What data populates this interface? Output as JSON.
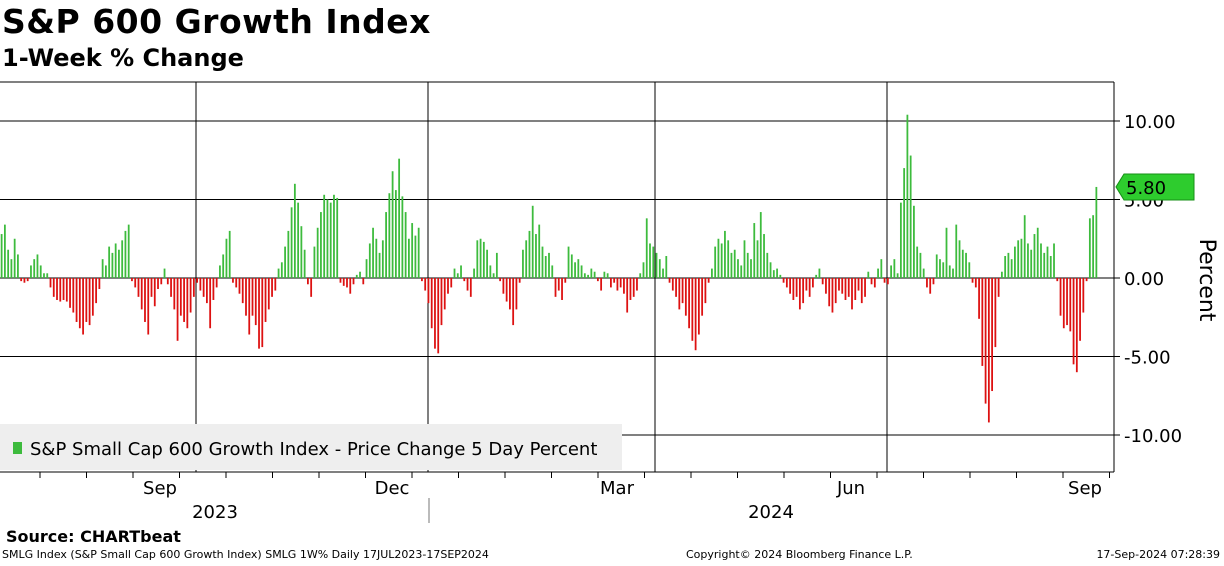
{
  "header": {
    "title": "S&P 600 Growth Index",
    "subtitle": "1-Week % Change"
  },
  "source": "Source: CHARTbeat",
  "footer": {
    "left": "SMLG Index (S&P Small Cap 600 Growth Index) SMLG 1W% Daily 17JUL2023-17SEP2024",
    "middle": "Copyright© 2024 Bloomberg Finance L.P.",
    "right": "17-Sep-2024 07:28:39"
  },
  "colors": {
    "positive": "#3dbb3d",
    "negative": "#dd1111",
    "last_label_bg": "#2ecc2e",
    "legend_bg": "#eeeeee"
  },
  "chart_data": {
    "type": "bar",
    "title": "S&P 600 Growth Index",
    "subtitle": "1-Week % Change",
    "ylabel": "Percent",
    "ylim": [
      -12.5,
      12.5
    ],
    "yticks": [
      10,
      5,
      0,
      -5,
      -10
    ],
    "ytick_labels": [
      "10.00",
      "5.00",
      "0.00",
      "-5.00",
      "-10.00"
    ],
    "x_month_labels": [
      "Sep",
      "Dec",
      "Mar",
      "Jun",
      "Sep"
    ],
    "x_year_labels": [
      "2023",
      "2024"
    ],
    "legend": "S&P Small Cap 600 Growth Index - Price Change 5 Day Percent",
    "last_value_label": "5.80",
    "series": [
      {
        "name": "S&P Small Cap 600 Growth Index - Price Change 5 Day Percent",
        "values": [
          2.8,
          3.4,
          1.8,
          1.2,
          2.5,
          1.5,
          -0.2,
          -0.3,
          -0.2,
          0.8,
          1.2,
          1.5,
          0.8,
          0.3,
          0.3,
          -0.6,
          -1.2,
          -1.4,
          -1.5,
          -1.4,
          -1.5,
          -1.9,
          -2.2,
          -2.8,
          -3.2,
          -3.6,
          -2.8,
          -3.0,
          -2.4,
          -1.6,
          -0.7,
          1.2,
          0.8,
          2.0,
          1.6,
          2.2,
          1.8,
          2.4,
          3.0,
          3.4,
          -0.2,
          -0.6,
          -1.2,
          -2.0,
          -2.8,
          -3.6,
          -1.2,
          -1.8,
          -0.7,
          -0.4,
          0.6,
          -0.4,
          -1.2,
          -2.0,
          -4.0,
          -2.4,
          -2.8,
          -3.2,
          -2.2,
          -1.2,
          -0.3,
          -0.8,
          -1.2,
          -1.6,
          -3.2,
          -1.4,
          -0.6,
          0.8,
          1.5,
          2.5,
          3.0,
          -0.3,
          -0.6,
          -1.0,
          -1.6,
          -2.4,
          -3.6,
          -2.4,
          -3.0,
          -4.5,
          -4.4,
          -2.8,
          -2.0,
          -1.2,
          -0.8,
          0.6,
          1.0,
          2.0,
          3.0,
          4.5,
          6.0,
          4.8,
          3.3,
          1.8,
          -0.4,
          -1.2,
          2.0,
          3.2,
          4.2,
          5.3,
          5.0,
          4.8,
          5.3,
          5.1,
          -0.3,
          -0.5,
          -0.6,
          -1.0,
          -0.4,
          0.2,
          0.4,
          -0.4,
          1.2,
          2.2,
          3.2,
          2.5,
          1.6,
          2.4,
          4.2,
          5.4,
          6.8,
          5.6,
          7.6,
          5.2,
          4.2,
          2.5,
          3.5,
          2.7,
          3.2,
          -0.2,
          -0.8,
          -1.6,
          -3.2,
          -4.5,
          -4.8,
          -3.0,
          -2.0,
          -1.0,
          -0.6,
          0.6,
          0.3,
          0.8,
          -0.2,
          -0.8,
          -1.2,
          0.6,
          2.4,
          2.5,
          2.3,
          1.8,
          0.8,
          0.3,
          1.6,
          -0.2,
          -1.0,
          -1.5,
          -2.0,
          -3.0,
          -2.0,
          -0.3,
          1.8,
          2.4,
          3.0,
          4.6,
          2.8,
          3.4,
          2.0,
          1.4,
          1.6,
          0.8,
          -1.2,
          -0.8,
          -1.4,
          -0.3,
          2.0,
          1.5,
          1.0,
          1.2,
          0.8,
          0.3,
          0.2,
          0.6,
          0.4,
          -0.2,
          -0.8,
          0.4,
          0.3,
          -0.6,
          -0.3,
          -0.8,
          -0.6,
          -1.0,
          -2.2,
          -1.4,
          -1.2,
          -0.8,
          0.3,
          1.0,
          3.8,
          2.2,
          2.0,
          1.6,
          1.2,
          0.6,
          1.4,
          -0.3,
          -0.8,
          -1.2,
          -2.0,
          -1.6,
          -2.4,
          -3.2,
          -4.0,
          -4.6,
          -3.6,
          -2.4,
          -1.6,
          -0.3,
          0.6,
          2.0,
          2.5,
          2.2,
          3.0,
          2.4,
          1.6,
          1.8,
          1.2,
          0.8,
          2.4,
          1.6,
          1.2,
          3.5,
          2.4,
          4.2,
          2.8,
          1.6,
          1.0,
          0.5,
          0.6,
          0.2,
          -0.3,
          -0.6,
          -1.0,
          -1.4,
          -1.2,
          -2.0,
          -1.6,
          -0.8,
          -1.2,
          -0.6,
          0.2,
          0.6,
          -0.4,
          -1.0,
          -1.8,
          -2.2,
          -1.6,
          -0.8,
          -1.0,
          -1.4,
          -1.2,
          -2.0,
          -1.4,
          -0.8,
          -1.6,
          -1.2,
          0.4,
          -0.4,
          -0.6,
          0.6,
          1.2,
          -0.3,
          -0.4,
          0.8,
          1.2,
          0.3,
          4.8,
          7.0,
          10.4,
          7.8,
          4.6,
          2.0,
          1.6,
          0.6,
          -0.6,
          -1.0,
          -0.4,
          1.5,
          1.2,
          1.0,
          3.2,
          0.8,
          0.6,
          3.4,
          2.4,
          1.8,
          1.6,
          1.0,
          -0.3,
          -0.6,
          -2.6,
          -5.6,
          -8.0,
          -9.2,
          -7.2,
          -4.4,
          -1.2,
          0.4,
          1.4,
          1.6,
          1.2,
          2.0,
          2.4,
          2.5,
          4.0,
          2.2,
          1.8,
          2.8,
          3.2,
          2.2,
          1.6,
          2.0,
          1.4,
          2.2,
          -0.2,
          -2.4,
          -3.2,
          -3.0,
          -3.4,
          -5.5,
          -6.0,
          -4.0,
          -2.2,
          -0.2,
          3.8,
          4.0,
          5.8
        ]
      }
    ]
  }
}
